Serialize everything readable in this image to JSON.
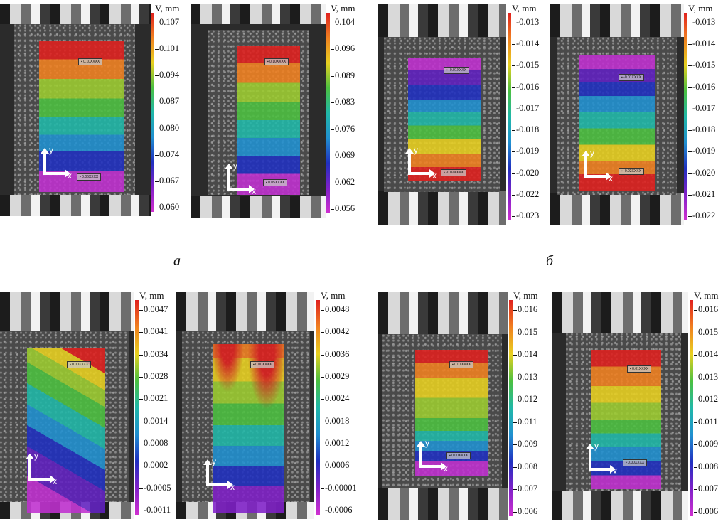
{
  "captions": [
    "а",
    "б"
  ],
  "groups": [
    {
      "id": "a",
      "panels": [
        {
          "unit_label": "V, mm",
          "ticks": [
            "0.107",
            "0.101",
            "0.094",
            "0.087",
            "0.080",
            "0.074",
            "0.067",
            "0.060"
          ],
          "pattern": "bands-red-top",
          "marker_labels": [
            "▪ 0.10XXXX",
            "▪ 0.06XXXX"
          ],
          "axis_labels": {
            "y": "y",
            "x": "x"
          }
        },
        {
          "unit_label": "V, mm",
          "ticks": [
            "0.104",
            "0.096",
            "0.089",
            "0.083",
            "0.076",
            "0.069",
            "0.062",
            "0.056"
          ],
          "pattern": "bands-red-top",
          "marker_labels": [
            "▪ 0.10XXXX",
            "▪ 0.05XXXX"
          ],
          "axis_labels": {
            "y": "y",
            "x": "x"
          }
        }
      ]
    },
    {
      "id": "b",
      "panels": [
        {
          "unit_label": "V, mm",
          "ticks": [
            "-0.013",
            "-0.014",
            "-0.015",
            "-0.016",
            "-0.017",
            "-0.018",
            "-0.019",
            "-0.020",
            "-0.022",
            "-0.023"
          ],
          "pattern": "bands-purple-top",
          "marker_labels": [
            "▪ -0.01XXXX",
            "▪ -0.02XXXX"
          ],
          "axis_labels": {
            "y": "y",
            "x": "x"
          }
        },
        {
          "unit_label": "V, mm",
          "ticks": [
            "-0.013",
            "-0.014",
            "-0.015",
            "-0.016",
            "-0.017",
            "-0.018",
            "-0.019",
            "-0.020",
            "-0.021",
            "-0.022"
          ],
          "pattern": "bands-purple-top",
          "marker_labels": [
            "▪ -0.01XXXX",
            "▪ -0.02XXXX"
          ],
          "axis_labels": {
            "y": "y",
            "x": "x"
          }
        }
      ]
    },
    {
      "id": "c",
      "panels": [
        {
          "unit_label": "V, mm",
          "ticks": [
            "0.0047",
            "0.0041",
            "0.0034",
            "0.0028",
            "0.0021",
            "0.0014",
            "0.0008",
            "0.0002",
            "-0.0005",
            "-0.0011"
          ],
          "pattern": "diagonal",
          "marker_labels": [
            "▪ 0.00XXXX"
          ],
          "axis_labels": {
            "y": "y",
            "x": "x"
          }
        },
        {
          "unit_label": "V, mm",
          "ticks": [
            "0.0048",
            "0.0042",
            "0.0036",
            "0.0029",
            "0.0024",
            "0.0018",
            "0.0012",
            "0.0006",
            "-0.00001",
            "-0.0006"
          ],
          "pattern": "diagonal-2",
          "marker_labels": [
            "▪ 0.00XXXX"
          ],
          "axis_labels": {
            "y": "y",
            "x": "x"
          }
        }
      ]
    },
    {
      "id": "d",
      "panels": [
        {
          "unit_label": "V, mm",
          "ticks": [
            "0.016",
            "0.015",
            "0.014",
            "0.013",
            "0.012",
            "0.011",
            "0.009",
            "0.008",
            "0.007",
            "0.006"
          ],
          "pattern": "bands-red-top-soft",
          "marker_labels": [
            "▪ 0.01XXXX",
            "▪ 0.00XXXX"
          ],
          "axis_labels": {
            "y": "y",
            "x": "x"
          }
        },
        {
          "unit_label": "V, mm",
          "ticks": [
            "0.016",
            "0.015",
            "0.014",
            "0.013",
            "0.012",
            "0.011",
            "0.009",
            "0.008",
            "0.007",
            "0.006"
          ],
          "pattern": "bands-red-top-soft",
          "marker_labels": [
            "▪ 0.01XXXX",
            "▪ 0.00XXXX"
          ],
          "axis_labels": {
            "y": "y",
            "x": "x"
          }
        }
      ]
    }
  ],
  "colormap": [
    "#e0201e",
    "#f08020",
    "#e8d020",
    "#4cc040",
    "#20b8a8",
    "#2090d0",
    "#2030c0",
    "#8020c8",
    "#d030d0"
  ]
}
